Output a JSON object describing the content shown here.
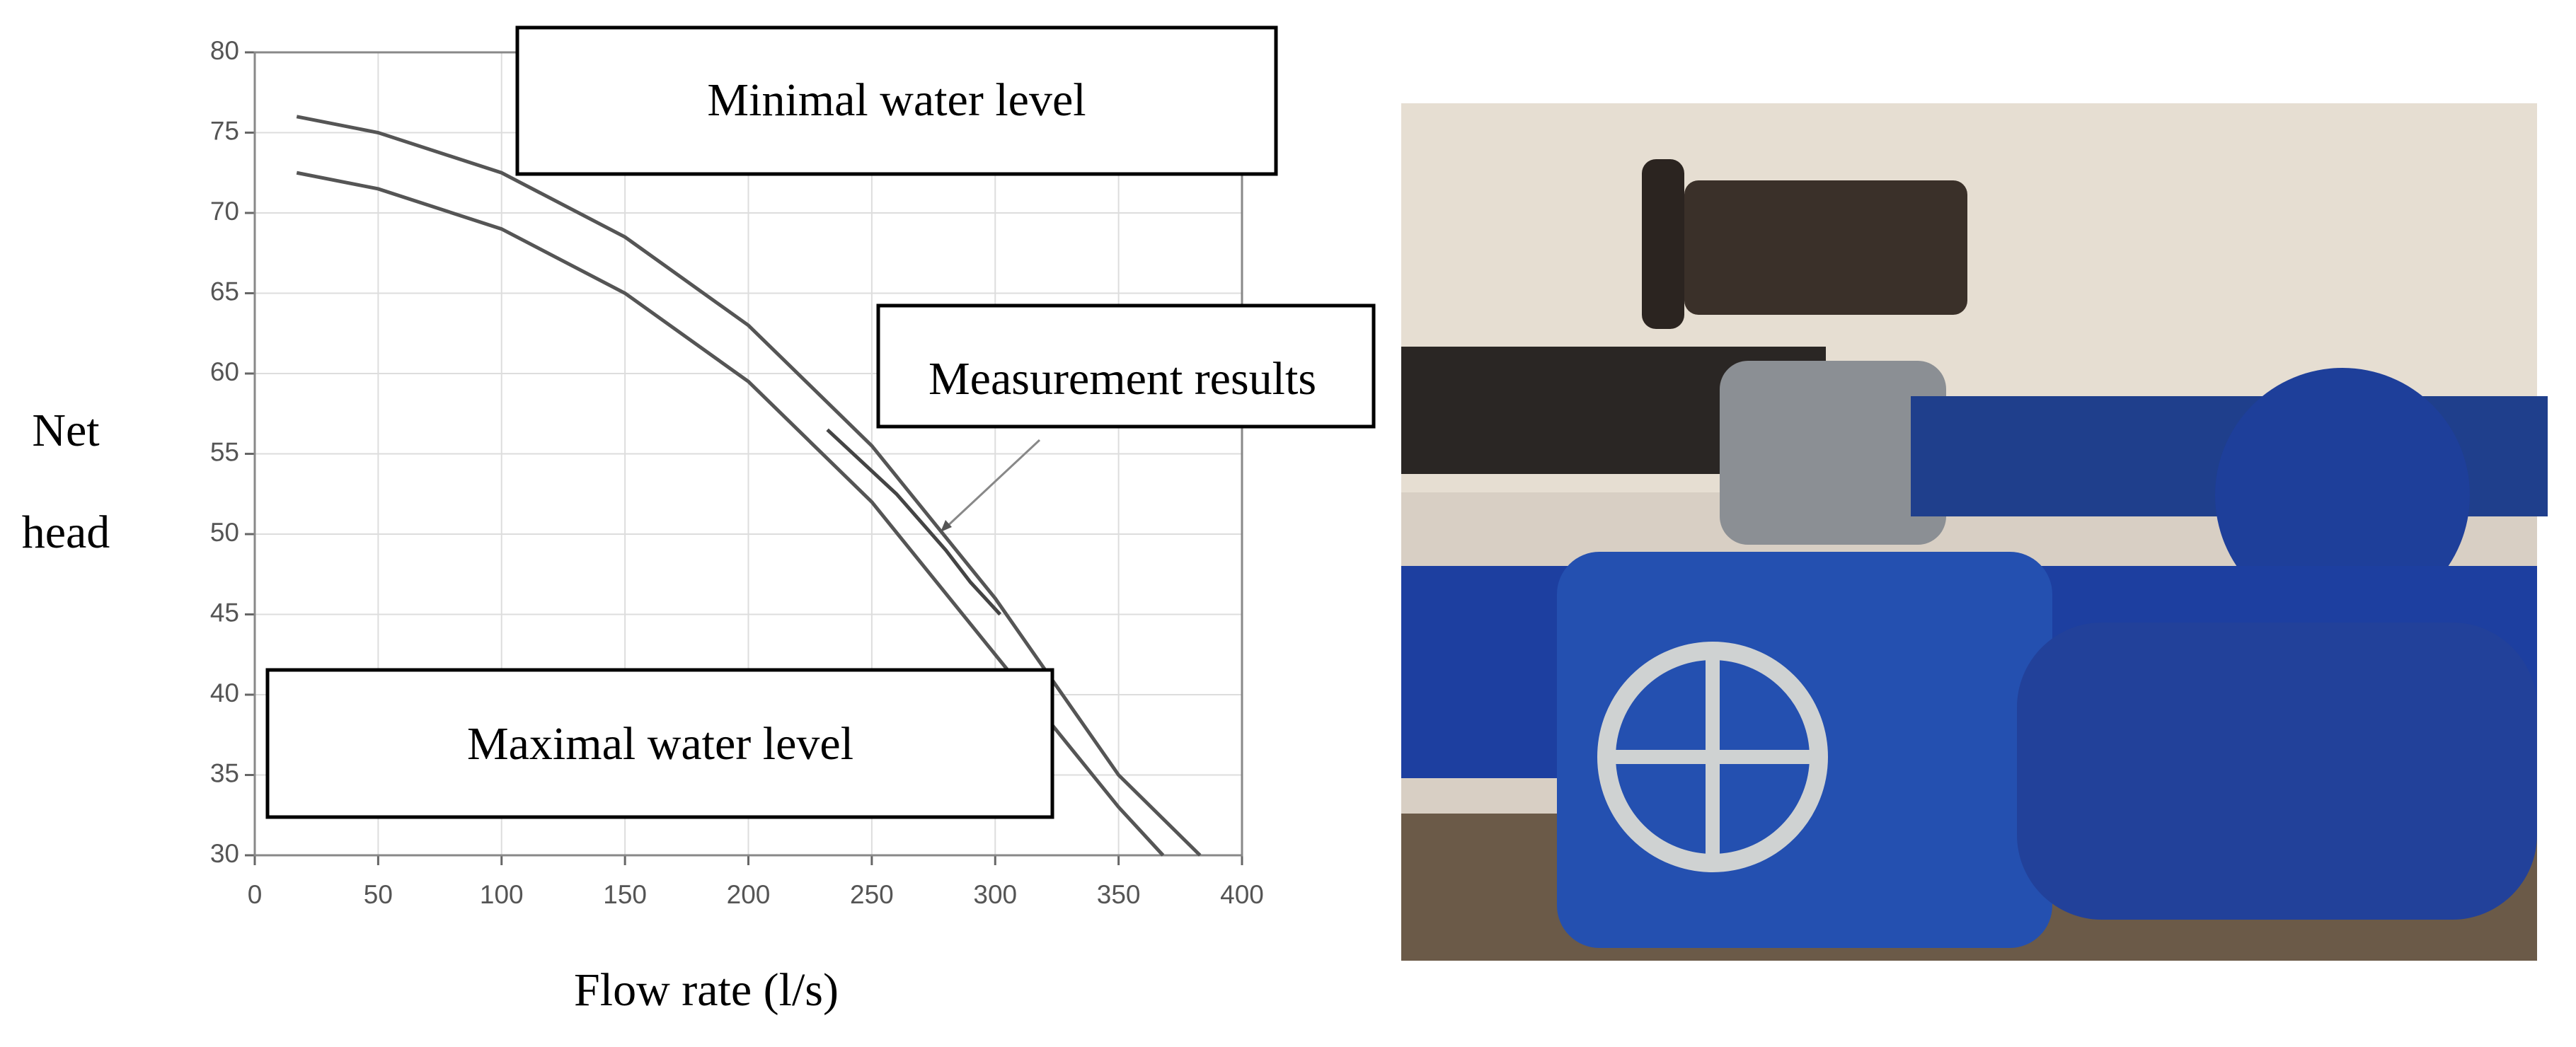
{
  "chart_data": {
    "type": "line",
    "x_label": "Flow rate (l/s)",
    "y_label_lines": [
      "Net",
      "head"
    ],
    "xlim": [
      0,
      400
    ],
    "xticks": [
      0,
      50,
      100,
      150,
      200,
      250,
      300,
      350,
      400
    ],
    "ylim": [
      30,
      80
    ],
    "yticks": [
      30,
      35,
      40,
      45,
      50,
      55,
      60,
      65,
      70,
      75,
      80
    ],
    "grid": true,
    "series": [
      {
        "color": "#555555",
        "x": [
          17,
          50,
          100,
          150,
          200,
          250,
          300,
          350,
          383
        ],
        "values": [
          76,
          75,
          72.5,
          68.5,
          63,
          55.5,
          46,
          35,
          30
        ]
      },
      {
        "color": "#555555",
        "x": [
          17,
          50,
          100,
          150,
          200,
          250,
          300,
          350,
          368
        ],
        "values": [
          72.5,
          71.5,
          69,
          65,
          59.5,
          52,
          42.5,
          33,
          30
        ]
      },
      {
        "color": "#444444",
        "x": [
          232,
          260,
          280,
          290,
          302
        ],
        "values": [
          56.5,
          52.5,
          49,
          47,
          45
        ]
      }
    ],
    "annotations": [
      "Minimal water level",
      "Measurement results",
      "Maximal water level"
    ]
  }
}
